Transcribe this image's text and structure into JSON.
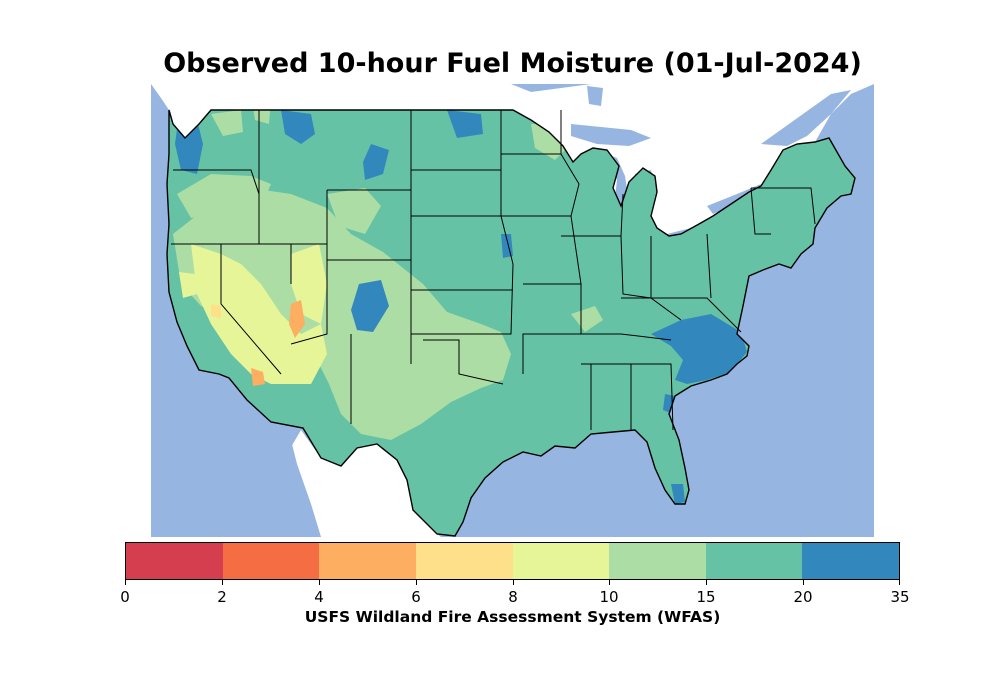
{
  "title": "Observed 10-hour Fuel Moisture (01-Jul-2024)",
  "colorbar": {
    "label": "USFS Wildland Fire Assessment System (WFAS)",
    "ticks": [
      "0",
      "2",
      "4",
      "6",
      "8",
      "10",
      "15",
      "20",
      "35"
    ],
    "colors": [
      "#d53e4f",
      "#f46d43",
      "#fdae61",
      "#fee08b",
      "#e6f598",
      "#abdda4",
      "#66c2a5",
      "#3288bd"
    ]
  },
  "map_colors": {
    "water": "#97b5e1",
    "land_outside": "#ffffff",
    "boundary": "#000000"
  }
}
